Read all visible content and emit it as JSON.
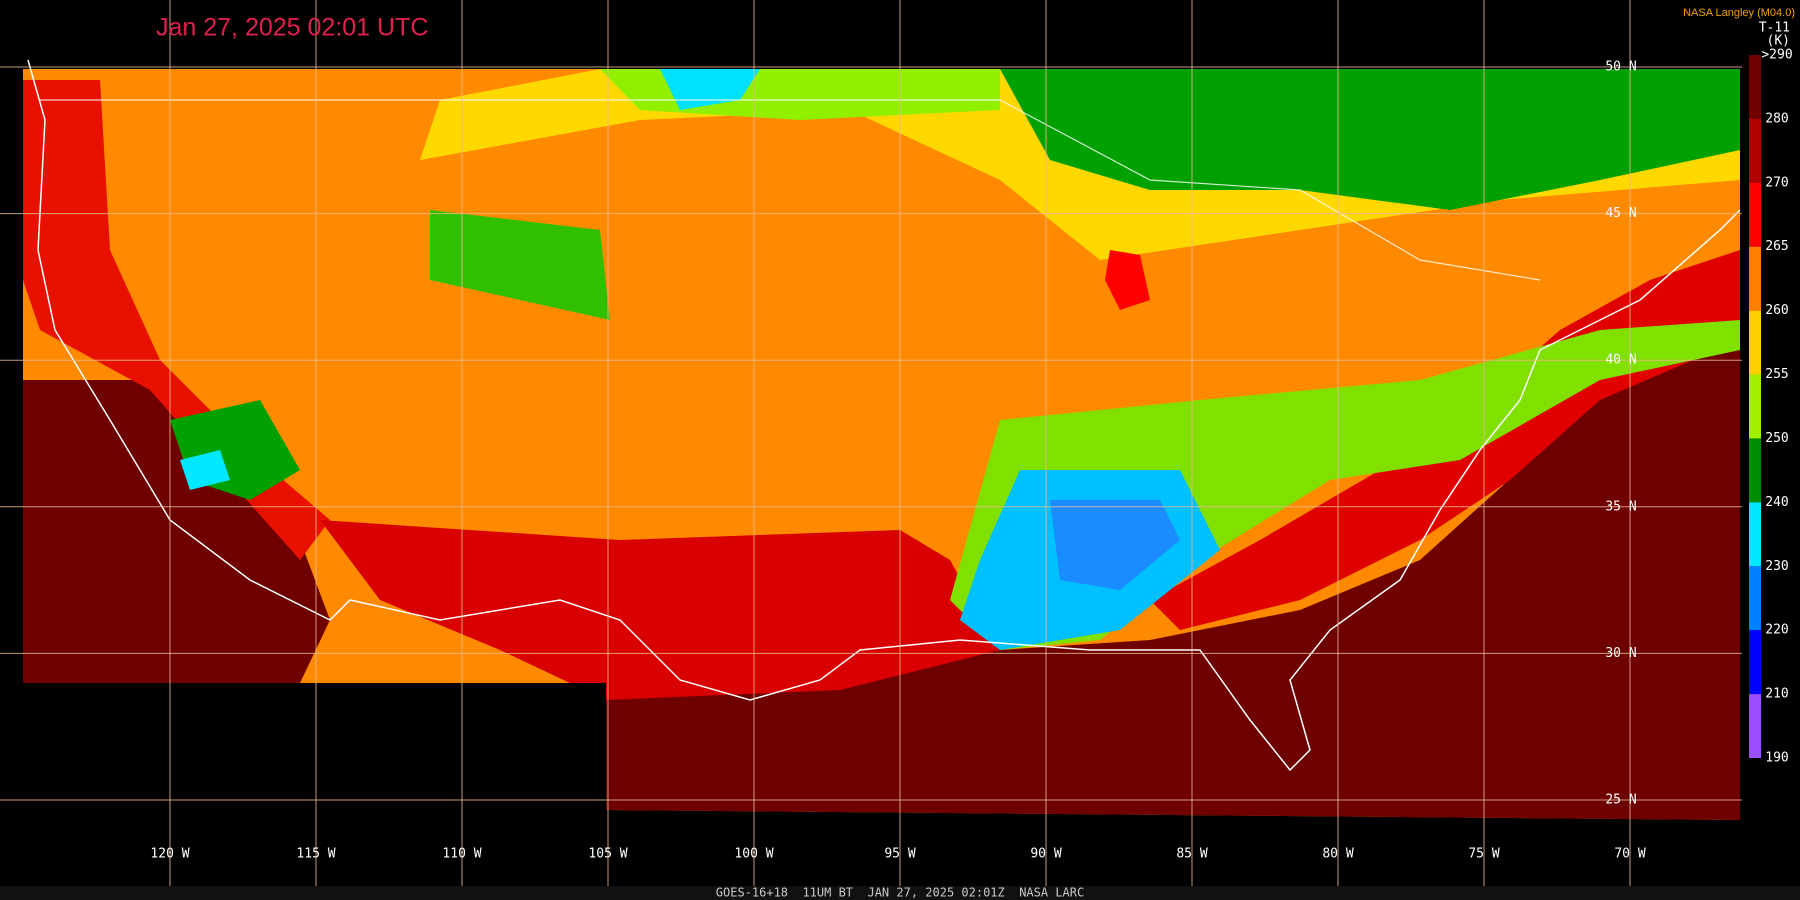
{
  "header": {
    "title": "Jan 27, 2025 02:01 UTC",
    "credit": "NASA Langley (M04.0)",
    "channel": "T-11",
    "unit": "(K)"
  },
  "colorbar": {
    "labels": [
      ">290",
      "280",
      "270",
      "265",
      "260",
      "255",
      "250",
      "240",
      "230",
      "220",
      "210",
      "190"
    ]
  },
  "grid": {
    "longitudes": [
      "120 W",
      "115 W",
      "110 W",
      "105 W",
      "100 W",
      "95 W",
      "90 W",
      "85 W",
      "80 W",
      "75 W",
      "70 W"
    ],
    "latitudes": [
      "50 N",
      "45 N",
      "40 N",
      "35 N",
      "30 N",
      "25 N"
    ]
  },
  "footer": "GOES-16+18  11UM BT  JAN 27, 2025 02:01Z  NASA LARC"
}
